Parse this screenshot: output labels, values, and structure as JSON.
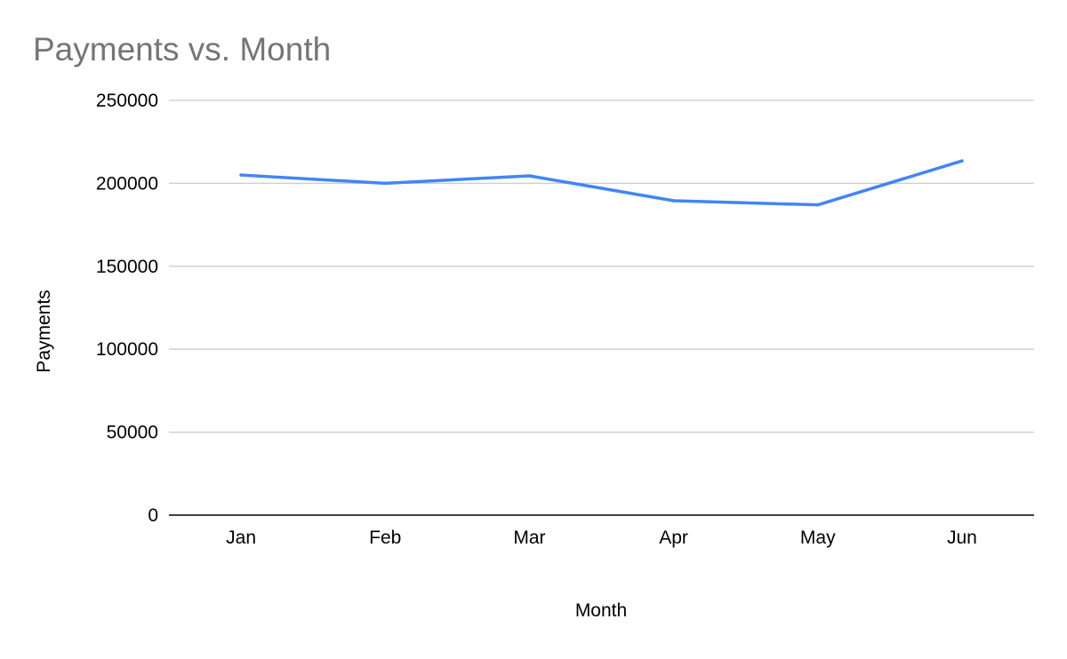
{
  "chart_data": {
    "type": "line",
    "title": "Payments vs. Month",
    "xlabel": "Month",
    "ylabel": "Payments",
    "categories": [
      "Jan",
      "Feb",
      "Mar",
      "Apr",
      "May",
      "Jun"
    ],
    "series": [
      {
        "values": [
          205000,
          200000,
          204500,
          189500,
          187000,
          213500
        ],
        "color": "#4285f4"
      }
    ],
    "ylim": [
      0,
      250000
    ],
    "yticks": [
      "0",
      "50000",
      "100000",
      "150000",
      "200000",
      "250000"
    ],
    "grid": true,
    "legend": "none"
  }
}
